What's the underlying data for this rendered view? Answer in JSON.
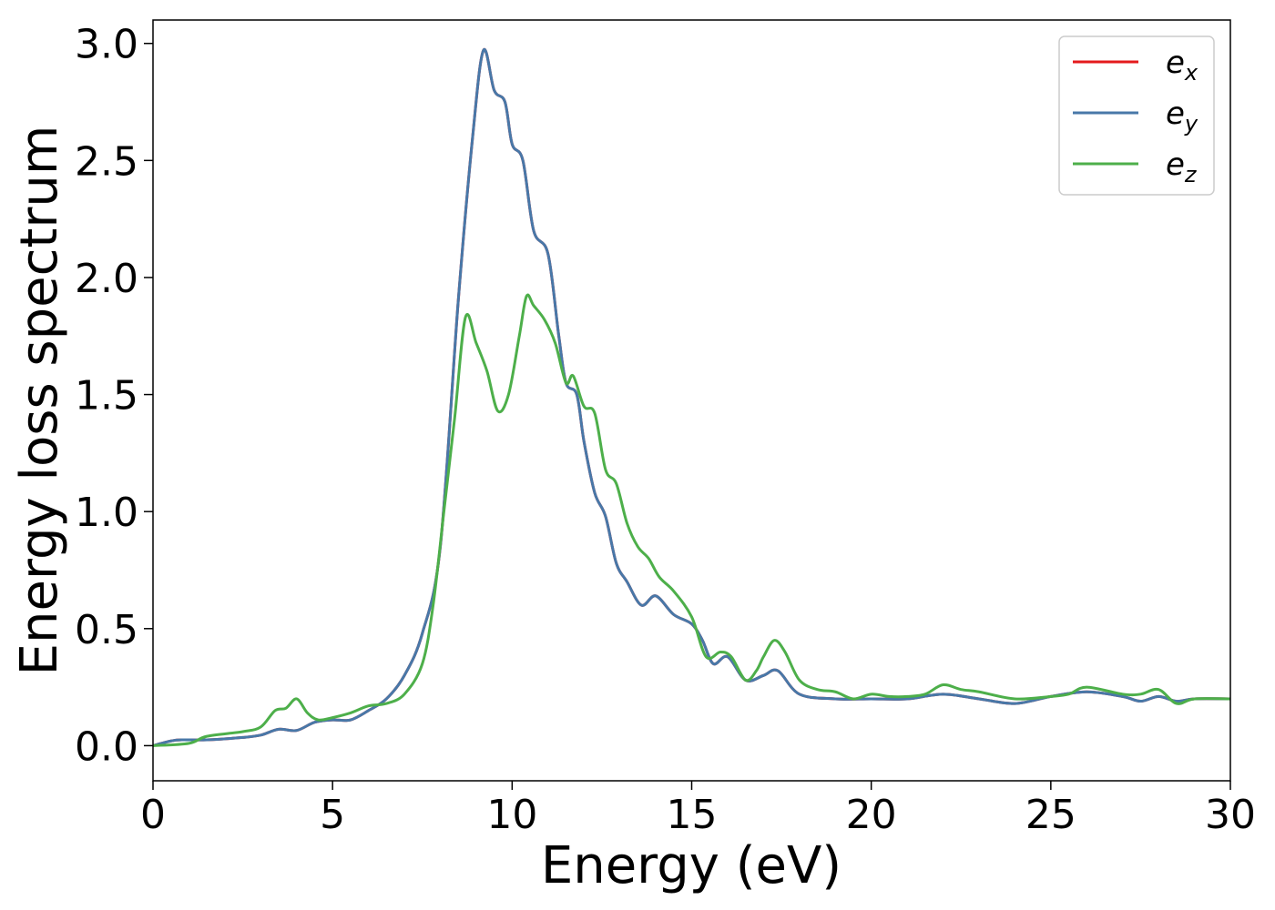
{
  "chart_data": {
    "type": "line",
    "title": "",
    "xlabel": "Energy (eV)",
    "ylabel": "Energy loss spectrum",
    "xlim": [
      0,
      30
    ],
    "ylim": [
      -0.15,
      3.1
    ],
    "xticks": [
      0,
      5,
      10,
      15,
      20,
      25,
      30
    ],
    "xtick_labels": [
      "0",
      "5",
      "10",
      "15",
      "20",
      "25",
      "30"
    ],
    "yticks": [
      0.0,
      0.5,
      1.0,
      1.5,
      2.0,
      2.5,
      3.0
    ],
    "ytick_labels": [
      "0.0",
      "0.5",
      "1.0",
      "1.5",
      "2.0",
      "2.5",
      "3.0"
    ],
    "grid": false,
    "legend_position": "top-right",
    "series": [
      {
        "name": "e_x",
        "legend_base": "e",
        "legend_sub": "x",
        "color": "#e41a1c",
        "points": [
          [
            0,
            0.0
          ],
          [
            0.5,
            0.02
          ],
          [
            0.8,
            0.025
          ],
          [
            1.5,
            0.025
          ],
          [
            2.5,
            0.035
          ],
          [
            3.0,
            0.045
          ],
          [
            3.5,
            0.07
          ],
          [
            4.0,
            0.065
          ],
          [
            4.5,
            0.1
          ],
          [
            5.0,
            0.11
          ],
          [
            5.5,
            0.11
          ],
          [
            6.0,
            0.15
          ],
          [
            6.5,
            0.2
          ],
          [
            7.0,
            0.3
          ],
          [
            7.5,
            0.48
          ],
          [
            8.0,
            0.85
          ],
          [
            8.5,
            1.9
          ],
          [
            8.9,
            2.6
          ],
          [
            9.2,
            2.97
          ],
          [
            9.5,
            2.8
          ],
          [
            9.8,
            2.75
          ],
          [
            10.0,
            2.57
          ],
          [
            10.3,
            2.5
          ],
          [
            10.6,
            2.2
          ],
          [
            11.0,
            2.1
          ],
          [
            11.3,
            1.75
          ],
          [
            11.5,
            1.55
          ],
          [
            11.8,
            1.5
          ],
          [
            12.0,
            1.3
          ],
          [
            12.3,
            1.08
          ],
          [
            12.6,
            0.98
          ],
          [
            12.9,
            0.78
          ],
          [
            13.2,
            0.7
          ],
          [
            13.6,
            0.6
          ],
          [
            14.0,
            0.64
          ],
          [
            14.5,
            0.56
          ],
          [
            15.0,
            0.52
          ],
          [
            15.3,
            0.45
          ],
          [
            15.6,
            0.35
          ],
          [
            16.0,
            0.38
          ],
          [
            16.5,
            0.28
          ],
          [
            17.0,
            0.3
          ],
          [
            17.4,
            0.32
          ],
          [
            18.0,
            0.22
          ],
          [
            19.0,
            0.2
          ],
          [
            20.0,
            0.2
          ],
          [
            21.0,
            0.2
          ],
          [
            22.0,
            0.22
          ],
          [
            23.0,
            0.2
          ],
          [
            24.0,
            0.18
          ],
          [
            25.0,
            0.21
          ],
          [
            26.0,
            0.23
          ],
          [
            27.0,
            0.21
          ],
          [
            27.5,
            0.19
          ],
          [
            28.0,
            0.21
          ],
          [
            28.5,
            0.19
          ],
          [
            29.0,
            0.2
          ],
          [
            30.0,
            0.2
          ]
        ]
      },
      {
        "name": "e_y",
        "legend_base": "e",
        "legend_sub": "y",
        "color": "#4878a8",
        "points": [
          [
            0,
            0.0
          ],
          [
            0.5,
            0.02
          ],
          [
            0.8,
            0.025
          ],
          [
            1.5,
            0.025
          ],
          [
            2.5,
            0.035
          ],
          [
            3.0,
            0.045
          ],
          [
            3.5,
            0.07
          ],
          [
            4.0,
            0.065
          ],
          [
            4.5,
            0.1
          ],
          [
            5.0,
            0.11
          ],
          [
            5.5,
            0.11
          ],
          [
            6.0,
            0.15
          ],
          [
            6.5,
            0.2
          ],
          [
            7.0,
            0.3
          ],
          [
            7.5,
            0.48
          ],
          [
            8.0,
            0.85
          ],
          [
            8.5,
            1.9
          ],
          [
            8.9,
            2.6
          ],
          [
            9.2,
            2.97
          ],
          [
            9.5,
            2.8
          ],
          [
            9.8,
            2.75
          ],
          [
            10.0,
            2.57
          ],
          [
            10.3,
            2.5
          ],
          [
            10.6,
            2.2
          ],
          [
            11.0,
            2.1
          ],
          [
            11.3,
            1.75
          ],
          [
            11.5,
            1.55
          ],
          [
            11.8,
            1.5
          ],
          [
            12.0,
            1.3
          ],
          [
            12.3,
            1.08
          ],
          [
            12.6,
            0.98
          ],
          [
            12.9,
            0.78
          ],
          [
            13.2,
            0.7
          ],
          [
            13.6,
            0.6
          ],
          [
            14.0,
            0.64
          ],
          [
            14.5,
            0.56
          ],
          [
            15.0,
            0.52
          ],
          [
            15.3,
            0.45
          ],
          [
            15.6,
            0.35
          ],
          [
            16.0,
            0.38
          ],
          [
            16.5,
            0.28
          ],
          [
            17.0,
            0.3
          ],
          [
            17.4,
            0.32
          ],
          [
            18.0,
            0.22
          ],
          [
            19.0,
            0.2
          ],
          [
            20.0,
            0.2
          ],
          [
            21.0,
            0.2
          ],
          [
            22.0,
            0.22
          ],
          [
            23.0,
            0.2
          ],
          [
            24.0,
            0.18
          ],
          [
            25.0,
            0.21
          ],
          [
            26.0,
            0.23
          ],
          [
            27.0,
            0.21
          ],
          [
            27.5,
            0.19
          ],
          [
            28.0,
            0.21
          ],
          [
            28.5,
            0.19
          ],
          [
            29.0,
            0.2
          ],
          [
            30.0,
            0.2
          ]
        ]
      },
      {
        "name": "e_z",
        "legend_base": "e",
        "legend_sub": "z",
        "color": "#4daf4a",
        "points": [
          [
            0,
            0.0
          ],
          [
            1.0,
            0.01
          ],
          [
            1.5,
            0.04
          ],
          [
            2.5,
            0.06
          ],
          [
            3.0,
            0.08
          ],
          [
            3.4,
            0.15
          ],
          [
            3.7,
            0.16
          ],
          [
            4.0,
            0.2
          ],
          [
            4.3,
            0.14
          ],
          [
            4.6,
            0.11
          ],
          [
            5.0,
            0.12
          ],
          [
            5.5,
            0.14
          ],
          [
            6.0,
            0.17
          ],
          [
            6.5,
            0.18
          ],
          [
            7.0,
            0.22
          ],
          [
            7.5,
            0.35
          ],
          [
            7.8,
            0.6
          ],
          [
            8.1,
            1.0
          ],
          [
            8.4,
            1.4
          ],
          [
            8.7,
            1.83
          ],
          [
            9.0,
            1.72
          ],
          [
            9.3,
            1.6
          ],
          [
            9.6,
            1.43
          ],
          [
            9.9,
            1.5
          ],
          [
            10.2,
            1.75
          ],
          [
            10.4,
            1.92
          ],
          [
            10.6,
            1.88
          ],
          [
            10.9,
            1.82
          ],
          [
            11.2,
            1.72
          ],
          [
            11.5,
            1.55
          ],
          [
            11.7,
            1.58
          ],
          [
            12.0,
            1.45
          ],
          [
            12.3,
            1.42
          ],
          [
            12.6,
            1.18
          ],
          [
            12.9,
            1.12
          ],
          [
            13.2,
            0.95
          ],
          [
            13.5,
            0.85
          ],
          [
            13.8,
            0.8
          ],
          [
            14.1,
            0.72
          ],
          [
            14.5,
            0.66
          ],
          [
            15.0,
            0.55
          ],
          [
            15.4,
            0.38
          ],
          [
            15.8,
            0.4
          ],
          [
            16.1,
            0.38
          ],
          [
            16.5,
            0.28
          ],
          [
            16.8,
            0.32
          ],
          [
            17.0,
            0.38
          ],
          [
            17.3,
            0.45
          ],
          [
            17.6,
            0.4
          ],
          [
            18.0,
            0.28
          ],
          [
            18.5,
            0.24
          ],
          [
            19.0,
            0.23
          ],
          [
            19.5,
            0.2
          ],
          [
            20.0,
            0.22
          ],
          [
            20.5,
            0.21
          ],
          [
            21.0,
            0.21
          ],
          [
            21.5,
            0.22
          ],
          [
            22.0,
            0.26
          ],
          [
            22.5,
            0.24
          ],
          [
            23.0,
            0.23
          ],
          [
            24.0,
            0.2
          ],
          [
            25.0,
            0.21
          ],
          [
            25.5,
            0.22
          ],
          [
            26.0,
            0.25
          ],
          [
            27.0,
            0.22
          ],
          [
            27.5,
            0.22
          ],
          [
            28.0,
            0.24
          ],
          [
            28.5,
            0.18
          ],
          [
            29.0,
            0.2
          ],
          [
            30.0,
            0.2
          ]
        ]
      }
    ]
  }
}
